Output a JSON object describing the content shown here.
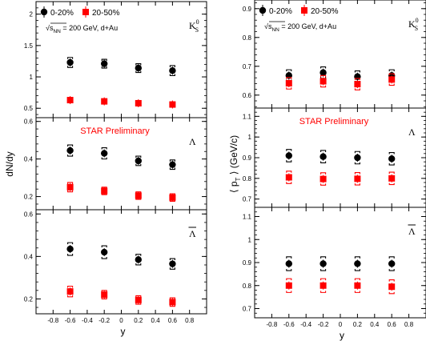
{
  "chart_data": [
    {
      "type": "scatter",
      "title": "",
      "ylabel": "dN/dy",
      "xlabel": "y",
      "xlim": [
        -1.0,
        1.0
      ],
      "xticks": [
        -0.8,
        -0.6,
        -0.4,
        -0.2,
        0,
        0.2,
        0.4,
        0.6,
        0.8
      ],
      "x_tick_labels": [
        "-0.8",
        "-0.6",
        "-0.4",
        "-0.2",
        "0",
        "0.2",
        "0.4",
        "0.6",
        "0.8"
      ],
      "legend": {
        "placement": "top-left",
        "entries": [
          {
            "label": "0-20%",
            "marker": "circle",
            "color": "#000000"
          },
          {
            "label": "20-50%",
            "marker": "square",
            "color": "#ff0000"
          }
        ]
      },
      "note": "√s_NN = 200 GeV, d+Au",
      "note_prefix": "√",
      "note_sqrt": "s",
      "note_sub": "NN",
      "note_rest": " = 200 GeV, d+Au",
      "preliminary_label": "STAR Preliminary",
      "panels": [
        {
          "species_base": "K",
          "species_sup": "0",
          "species_sub": "S",
          "overline": false,
          "ylim": [
            0.35,
            2.2
          ],
          "yticks": [
            0.5,
            1,
            1.5,
            2
          ],
          "y_tick_labels": [
            "0.5",
            "1",
            "1.5",
            "2"
          ],
          "series": [
            {
              "name": "0-20%",
              "x": [
                -0.6,
                -0.2,
                0.2,
                0.6
              ],
              "y": [
                1.23,
                1.21,
                1.14,
                1.1
              ],
              "err": [
                0.08,
                0.07,
                0.07,
                0.08
              ]
            },
            {
              "name": "20-50%",
              "x": [
                -0.6,
                -0.2,
                0.2,
                0.6
              ],
              "y": [
                0.63,
                0.61,
                0.58,
                0.56
              ],
              "err": [
                0.04,
                0.03,
                0.03,
                0.03
              ]
            }
          ]
        },
        {
          "species_base": "Λ",
          "species_sup": "",
          "species_sub": "",
          "overline": false,
          "ylim": [
            0.13,
            0.62
          ],
          "yticks": [
            0.2,
            0.4,
            0.6
          ],
          "y_tick_labels": [
            "0.2",
            "0.4",
            "0.6"
          ],
          "series": [
            {
              "name": "0-20%",
              "x": [
                -0.6,
                -0.2,
                0.2,
                0.6
              ],
              "y": [
                0.445,
                0.43,
                0.39,
                0.37
              ],
              "err": [
                0.03,
                0.03,
                0.025,
                0.025
              ]
            },
            {
              "name": "20-50%",
              "x": [
                -0.6,
                -0.2,
                0.2,
                0.6
              ],
              "y": [
                0.25,
                0.23,
                0.205,
                0.195
              ],
              "err": [
                0.025,
                0.02,
                0.02,
                0.02
              ]
            }
          ]
        },
        {
          "species_base": "Λ",
          "species_sup": "",
          "species_sub": "",
          "overline": true,
          "ylim": [
            0.13,
            0.62
          ],
          "yticks": [
            0.2,
            0.4,
            0.6
          ],
          "y_tick_labels": [
            "0.2",
            "0.4",
            "0.6"
          ],
          "series": [
            {
              "name": "0-20%",
              "x": [
                -0.6,
                -0.2,
                0.2,
                0.6
              ],
              "y": [
                0.435,
                0.42,
                0.385,
                0.365
              ],
              "err": [
                0.03,
                0.03,
                0.025,
                0.025
              ]
            },
            {
              "name": "20-50%",
              "x": [
                -0.6,
                -0.2,
                0.2,
                0.6
              ],
              "y": [
                0.235,
                0.22,
                0.195,
                0.185
              ],
              "err": [
                0.025,
                0.02,
                0.02,
                0.02
              ]
            }
          ]
        }
      ]
    },
    {
      "type": "scatter",
      "title": "",
      "ylabel": "⟨ p_T ⟩ (GeV/c)",
      "ylabel_open": "⟨ p",
      "ylabel_sub": "T",
      "ylabel_close": " ⟩ (GeV/c)",
      "xlabel": "y",
      "xlim": [
        -1.0,
        1.0
      ],
      "xticks": [
        -0.8,
        -0.6,
        -0.4,
        -0.2,
        0,
        0.2,
        0.4,
        0.6,
        0.8
      ],
      "x_tick_labels": [
        "-0.8",
        "-0.6",
        "-0.4",
        "-0.2",
        "0",
        "0.2",
        "0.4",
        "0.6",
        "0.8"
      ],
      "legend": {
        "placement": "top-left",
        "entries": [
          {
            "label": "0-20%",
            "marker": "circle",
            "color": "#000000"
          },
          {
            "label": "20-50%",
            "marker": "square",
            "color": "#ff0000"
          }
        ]
      },
      "note": "√s_NN = 200 GeV, d+Au",
      "note_prefix": "√",
      "note_sqrt": "s",
      "note_sub": "NN",
      "note_rest": " = 200 GeV, d+Au",
      "preliminary_label": "STAR Preliminary",
      "panels": [
        {
          "species_base": "K",
          "species_sup": "0",
          "species_sub": "S",
          "overline": false,
          "ylim": [
            0.555,
            0.93
          ],
          "yticks": [
            0.6,
            0.7,
            0.8,
            0.9
          ],
          "y_tick_labels": [
            "0.6",
            "0.7",
            "0.8",
            "0.9"
          ],
          "series": [
            {
              "name": "0-20%",
              "x": [
                -0.6,
                -0.2,
                0.2,
                0.6
              ],
              "y": [
                0.668,
                0.678,
                0.664,
                0.668
              ],
              "err": [
                0.02,
                0.02,
                0.02,
                0.02
              ]
            },
            {
              "name": "20-50%",
              "x": [
                -0.6,
                -0.2,
                0.2,
                0.6
              ],
              "y": [
                0.641,
                0.648,
                0.638,
                0.654
              ],
              "err": [
                0.02,
                0.02,
                0.02,
                0.02
              ]
            }
          ]
        },
        {
          "species_base": "Λ",
          "species_sup": "",
          "species_sub": "",
          "overline": false,
          "ylim": [
            0.66,
            1.14
          ],
          "yticks": [
            0.7,
            0.8,
            0.9,
            1,
            1.1
          ],
          "y_tick_labels": [
            "0.7",
            "0.8",
            "0.9",
            "1",
            "1.1"
          ],
          "series": [
            {
              "name": "0-20%",
              "x": [
                -0.6,
                -0.2,
                0.2,
                0.6
              ],
              "y": [
                0.91,
                0.905,
                0.9,
                0.895
              ],
              "err": [
                0.03,
                0.03,
                0.03,
                0.03
              ]
            },
            {
              "name": "20-50%",
              "x": [
                -0.6,
                -0.2,
                0.2,
                0.6
              ],
              "y": [
                0.805,
                0.797,
                0.798,
                0.8
              ],
              "err": [
                0.03,
                0.03,
                0.03,
                0.03
              ]
            }
          ]
        },
        {
          "species_base": "Λ",
          "species_sup": "",
          "species_sub": "",
          "overline": true,
          "ylim": [
            0.66,
            1.14
          ],
          "yticks": [
            0.7,
            0.8,
            0.9,
            1,
            1.1
          ],
          "y_tick_labels": [
            "0.7",
            "0.8",
            "0.9",
            "1",
            "1.1"
          ],
          "series": [
            {
              "name": "0-20%",
              "x": [
                -0.6,
                -0.2,
                0.2,
                0.6
              ],
              "y": [
                0.895,
                0.895,
                0.895,
                0.895
              ],
              "err": [
                0.03,
                0.03,
                0.03,
                0.03
              ]
            },
            {
              "name": "20-50%",
              "x": [
                -0.6,
                -0.2,
                0.2,
                0.6
              ],
              "y": [
                0.8,
                0.8,
                0.8,
                0.795
              ],
              "err": [
                0.03,
                0.03,
                0.03,
                0.03
              ]
            }
          ]
        }
      ]
    }
  ],
  "colors": {
    "central": "#000000",
    "peripheral": "#ff0000",
    "preliminary": "#ff0000",
    "frame": "#000000"
  }
}
